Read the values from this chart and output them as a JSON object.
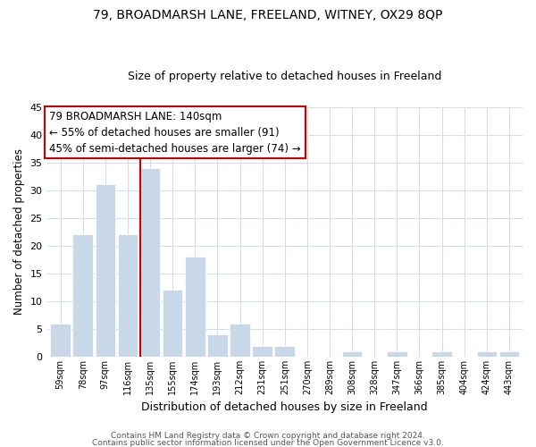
{
  "title1": "79, BROADMARSH LANE, FREELAND, WITNEY, OX29 8QP",
  "title2": "Size of property relative to detached houses in Freeland",
  "xlabel": "Distribution of detached houses by size in Freeland",
  "ylabel": "Number of detached properties",
  "bar_labels": [
    "59sqm",
    "78sqm",
    "97sqm",
    "116sqm",
    "135sqm",
    "155sqm",
    "174sqm",
    "193sqm",
    "212sqm",
    "231sqm",
    "251sqm",
    "270sqm",
    "289sqm",
    "308sqm",
    "328sqm",
    "347sqm",
    "366sqm",
    "385sqm",
    "404sqm",
    "424sqm",
    "443sqm"
  ],
  "bar_values": [
    6,
    22,
    31,
    22,
    34,
    12,
    18,
    4,
    6,
    2,
    2,
    0,
    0,
    1,
    0,
    1,
    0,
    1,
    0,
    1,
    1
  ],
  "bar_color": "#c8d8e8",
  "red_line_bar_index": 4,
  "ylim": [
    0,
    45
  ],
  "yticks": [
    0,
    5,
    10,
    15,
    20,
    25,
    30,
    35,
    40,
    45
  ],
  "annotation_title": "79 BROADMARSH LANE: 140sqm",
  "annotation_line1": "← 55% of detached houses are smaller (91)",
  "annotation_line2": "45% of semi-detached houses are larger (74) →",
  "footer1": "Contains HM Land Registry data © Crown copyright and database right 2024.",
  "footer2": "Contains public sector information licensed under the Open Government Licence v3.0.",
  "box_edge_color": "#cc0000",
  "red_line_color": "#cc0000",
  "grid_color": "#d4dce8",
  "bar_edge_color": "#ffffff",
  "title1_fontsize": 10,
  "title2_fontsize": 9,
  "ylabel_fontsize": 8.5,
  "xlabel_fontsize": 9,
  "ytick_fontsize": 8,
  "xtick_fontsize": 7,
  "annotation_fontsize": 8.5,
  "footer_fontsize": 6.5
}
